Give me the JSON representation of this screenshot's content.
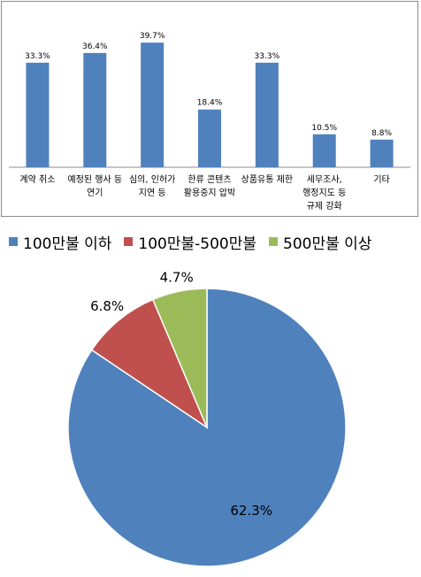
{
  "chart_data": [
    {
      "type": "bar",
      "categories": [
        [
          "계약 취소"
        ],
        [
          "예정된 행사 등",
          "연기"
        ],
        [
          "심의, 인허가",
          "지연 등"
        ],
        [
          "한류 콘텐츠",
          "활용중지 압박"
        ],
        [
          "상품유통 제한"
        ],
        [
          "세무조사,",
          "행정지도 등",
          "규제 강화"
        ],
        [
          "기타"
        ]
      ],
      "values": [
        33.3,
        36.4,
        39.7,
        18.4,
        33.3,
        10.5,
        8.8
      ],
      "value_labels": [
        "33.3%",
        "36.4%",
        "39.7%",
        "18.4%",
        "33.3%",
        "10.5%",
        "8.8%"
      ],
      "ylim": [
        0,
        42
      ],
      "color": "#4f81bd",
      "grid": false
    },
    {
      "type": "pie",
      "labels": [
        "100만불 이하",
        "100만불-500만불",
        "500만불 이상"
      ],
      "values": [
        62.3,
        6.8,
        4.7
      ],
      "value_labels": [
        "62.3%",
        "6.8%",
        "4.7%"
      ],
      "colors": [
        "#4f81bd",
        "#c0504d",
        "#9bbb59"
      ],
      "legend_position": "top"
    }
  ]
}
